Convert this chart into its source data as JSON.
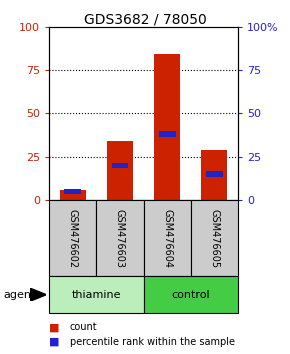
{
  "title": "GDS3682 / 78050",
  "samples": [
    "GSM476602",
    "GSM476603",
    "GSM476604",
    "GSM476605"
  ],
  "count_values": [
    6,
    34,
    84,
    29
  ],
  "percentile_values": [
    5,
    20,
    38,
    15
  ],
  "bar_color_red": "#cc2200",
  "bar_color_blue": "#2222cc",
  "ylim": [
    0,
    100
  ],
  "yticks": [
    0,
    25,
    50,
    75,
    100
  ],
  "left_tick_color": "#cc2200",
  "right_tick_color": "#2222cc",
  "sample_bg": "#cccccc",
  "thiamine_color": "#bbeebb",
  "control_color": "#44cc44",
  "grid_dotted_ticks": [
    25,
    50,
    75
  ],
  "bar_width": 0.55,
  "blue_bar_height": 3,
  "title_fontsize": 10,
  "tick_fontsize": 8,
  "label_fontsize": 8,
  "sample_fontsize": 7,
  "group_fontsize": 8,
  "legend_fontsize": 7
}
